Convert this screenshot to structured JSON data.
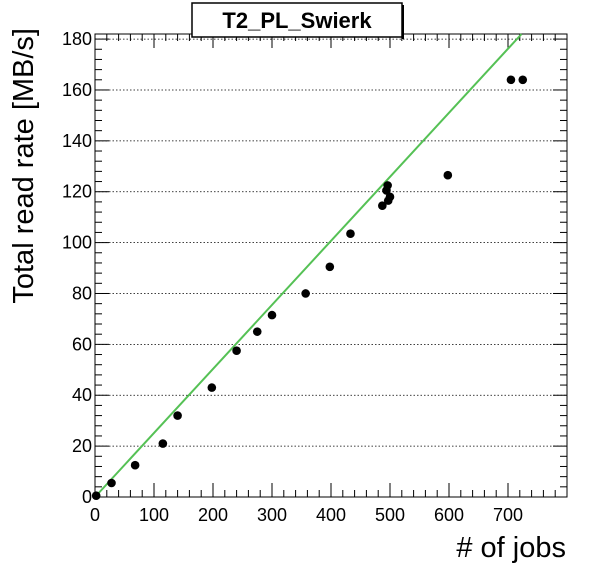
{
  "chart_data": {
    "type": "scatter",
    "title": "T2_PL_Swierk",
    "xlabel": "# of jobs",
    "ylabel": "Total read rate [MB/s]",
    "xlim": [
      0,
      800
    ],
    "ylim": [
      0,
      182
    ],
    "x_ticks": [
      0,
      100,
      200,
      300,
      400,
      500,
      600,
      700
    ],
    "y_ticks": [
      0,
      20,
      40,
      60,
      80,
      100,
      120,
      140,
      160,
      180
    ],
    "grid": "horizontal-dotted",
    "series": [
      {
        "marker_color": "#000000",
        "points": [
          {
            "x": 2,
            "y": 0.5
          },
          {
            "x": 28,
            "y": 5.5
          },
          {
            "x": 68,
            "y": 12.5
          },
          {
            "x": 115,
            "y": 21
          },
          {
            "x": 140,
            "y": 32
          },
          {
            "x": 198,
            "y": 43
          },
          {
            "x": 240,
            "y": 57.5
          },
          {
            "x": 275,
            "y": 65
          },
          {
            "x": 300,
            "y": 71.5
          },
          {
            "x": 357,
            "y": 80
          },
          {
            "x": 398,
            "y": 90.5
          },
          {
            "x": 433,
            "y": 103.5
          },
          {
            "x": 487,
            "y": 114.5
          },
          {
            "x": 494,
            "y": 120.5
          },
          {
            "x": 496,
            "y": 122.5
          },
          {
            "x": 497,
            "y": 116.5
          },
          {
            "x": 500,
            "y": 118
          },
          {
            "x": 598,
            "y": 126.5
          },
          {
            "x": 705,
            "y": 164
          },
          {
            "x": 725,
            "y": 164
          }
        ]
      }
    ],
    "fit_line": {
      "color": "#55c155",
      "x0": 0,
      "y0": 0,
      "x1": 727,
      "y1": 183
    }
  }
}
